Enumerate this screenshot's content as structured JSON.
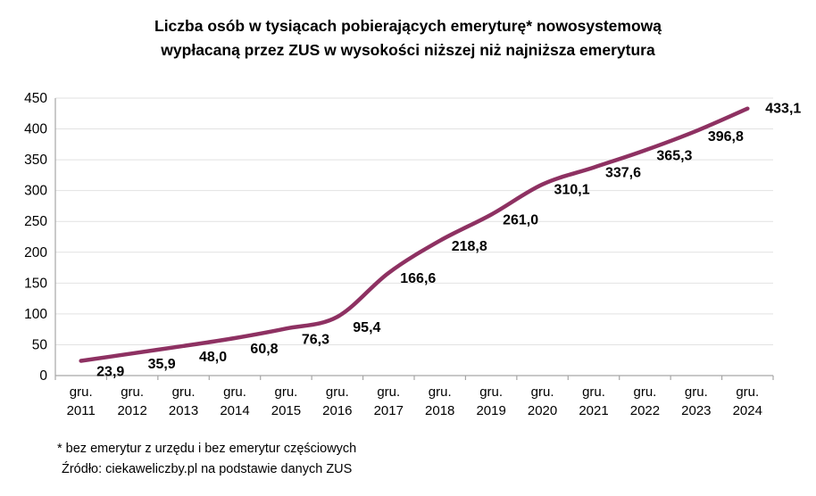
{
  "title": {
    "line1": "Liczba osób w tysiącach pobierających emeryturę* nowosystemową",
    "line2": "wypłacaną przez ZUS w wysokości niższej niż najniższa emerytura"
  },
  "chart_data": {
    "type": "line",
    "smooth": true,
    "categories": [
      {
        "top": "gru.",
        "bottom": "2011"
      },
      {
        "top": "gru.",
        "bottom": "2012"
      },
      {
        "top": "gru.",
        "bottom": "2013"
      },
      {
        "top": "gru.",
        "bottom": "2014"
      },
      {
        "top": "gru.",
        "bottom": "2015"
      },
      {
        "top": "gru.",
        "bottom": "2016"
      },
      {
        "top": "gru.",
        "bottom": "2017"
      },
      {
        "top": "gru.",
        "bottom": "2018"
      },
      {
        "top": "gru.",
        "bottom": "2019"
      },
      {
        "top": "gru.",
        "bottom": "2020"
      },
      {
        "top": "gru.",
        "bottom": "2021"
      },
      {
        "top": "gru.",
        "bottom": "2022"
      },
      {
        "top": "gru.",
        "bottom": "2023"
      },
      {
        "top": "gru.",
        "bottom": "2024"
      }
    ],
    "values": [
      23.9,
      35.9,
      48.0,
      60.8,
      76.3,
      95.4,
      166.6,
      218.8,
      261.0,
      310.1,
      337.6,
      365.3,
      396.8,
      433.1
    ],
    "value_labels": [
      "23,9",
      "35,9",
      "48,0",
      "60,8",
      "76,3",
      "95,4",
      "166,6",
      "218,8",
      "261,0",
      "310,1",
      "337,6",
      "365,3",
      "396,8",
      "433,1"
    ],
    "ylim": [
      0,
      450
    ],
    "ytick_step": 50,
    "y_tick_labels": [
      "0",
      "50",
      "100",
      "150",
      "200",
      "250",
      "300",
      "350",
      "400",
      "450"
    ],
    "grid": true,
    "legend": "none",
    "line_color": "#8E3162",
    "grid_color": "#E2E2E2",
    "axis_color": "#A6A6A6",
    "text_color": "#000000",
    "label_color": "#000000"
  },
  "footnotes": {
    "asterisk": "* bez emerytur z urzędu i bez emerytur częściowych",
    "source": "Źródło: ciekaweliczby.pl na podstawie danych ZUS"
  }
}
